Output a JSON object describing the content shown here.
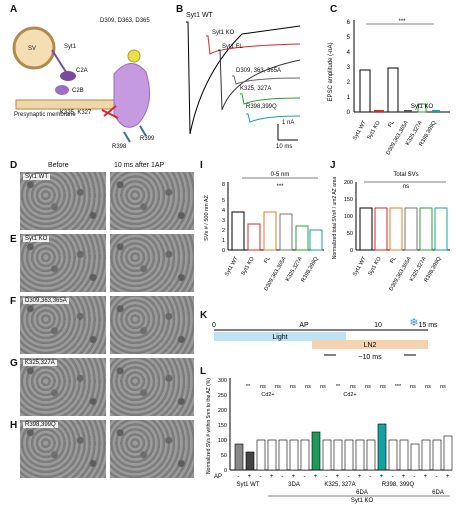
{
  "panels": {
    "A": "A",
    "B": "B",
    "C": "C",
    "D": "D",
    "E": "E",
    "F": "F",
    "G": "G",
    "H": "H",
    "I": "I",
    "J": "J",
    "K": "K",
    "L": "L"
  },
  "panelA": {
    "sv": "SV",
    "syt1": "Syt1",
    "c2a": "C2A",
    "c2b": "C2B",
    "membrane": "Presynaptic membrane",
    "res1": "D309, D363, D365",
    "res2": "K325, K327",
    "res3": "R398",
    "res4": "R399"
  },
  "panelB": {
    "traces": [
      "Syt1 WT",
      "Syt1 KO",
      "Syt1 FL",
      "D309, 363, 365A",
      "K325, 327A",
      "R398,399Q"
    ],
    "colors": [
      "#000000",
      "#d62728",
      "#333333",
      "#555555",
      "#2ca02c",
      "#17a2a2"
    ],
    "scale_y": "1 nA",
    "scale_x": "10 ms"
  },
  "panelC": {
    "ylabel": "EPSC amplitude (-nA)",
    "ticks": [
      "0",
      "1",
      "2",
      "3",
      "4",
      "5",
      "6"
    ],
    "categories": [
      "Syt1 WT",
      "Syt1 KO",
      "FL",
      "D309,363,365A",
      "K325,327A",
      "R398,399Q"
    ],
    "group": "Syt1 KO",
    "sig": "***"
  },
  "emrows": {
    "before": "Before",
    "after": "10 ms after 1AP",
    "labels": [
      "Syt1 WT",
      "Syt1 KO",
      "D309,363,365A",
      "K325,327A",
      "R398,399Q"
    ]
  },
  "panelI": {
    "ylabel": "SVs # / 500 nm AZ",
    "ticks": [
      "0",
      "1",
      "2",
      "3",
      "4",
      "5",
      "8"
    ],
    "header": "0-5 nm",
    "sig": "***",
    "categories": [
      "Syt1 WT",
      "Syt1 KO",
      "FL",
      "D309,363,365A",
      "K325,327A",
      "R398,399Q"
    ]
  },
  "panelJ": {
    "ylabel": "Normalized total SVs# / um2 AZ area",
    "ticks": [
      "0",
      "50",
      "100",
      "150",
      "200"
    ],
    "header": "Total SVs",
    "sig": "ns",
    "categories": [
      "Syt1 WT",
      "Syt1 KO",
      "FL",
      "D309,363,365A",
      "K325,327A",
      "R398,399Q"
    ]
  },
  "panelK": {
    "t0": "0",
    "ap": "AP",
    "t10": "10",
    "t15": "15 ms",
    "light": "Light",
    "ln2": "LN2",
    "approx": "~10 ms"
  },
  "panelL": {
    "ylabel": "Normalized SVs # within 5nm to the AZ (%)",
    "ticks": [
      "0",
      "50",
      "100",
      "150",
      "200",
      "250",
      "300"
    ],
    "ap_label": "AP",
    "ap_signs": [
      "-",
      "+",
      "-",
      "+",
      "-",
      "+",
      "-",
      "+",
      "-",
      "+",
      "-",
      "+",
      "-",
      "+",
      "-",
      "+",
      "-",
      "+",
      "-",
      "+"
    ],
    "sig_top": [
      "**",
      "ns",
      "ns",
      "ns",
      "ns",
      "ns",
      "**",
      "ns",
      "ns",
      "ns",
      "***",
      "ns",
      "ns",
      "ns"
    ],
    "cd": "Cd2+",
    "groups": [
      "Syt1 WT",
      "3DA",
      "K325, 327A",
      "R398, 399Q",
      "6DA",
      "6DA"
    ],
    "ko": "Syt1 KO"
  }
}
